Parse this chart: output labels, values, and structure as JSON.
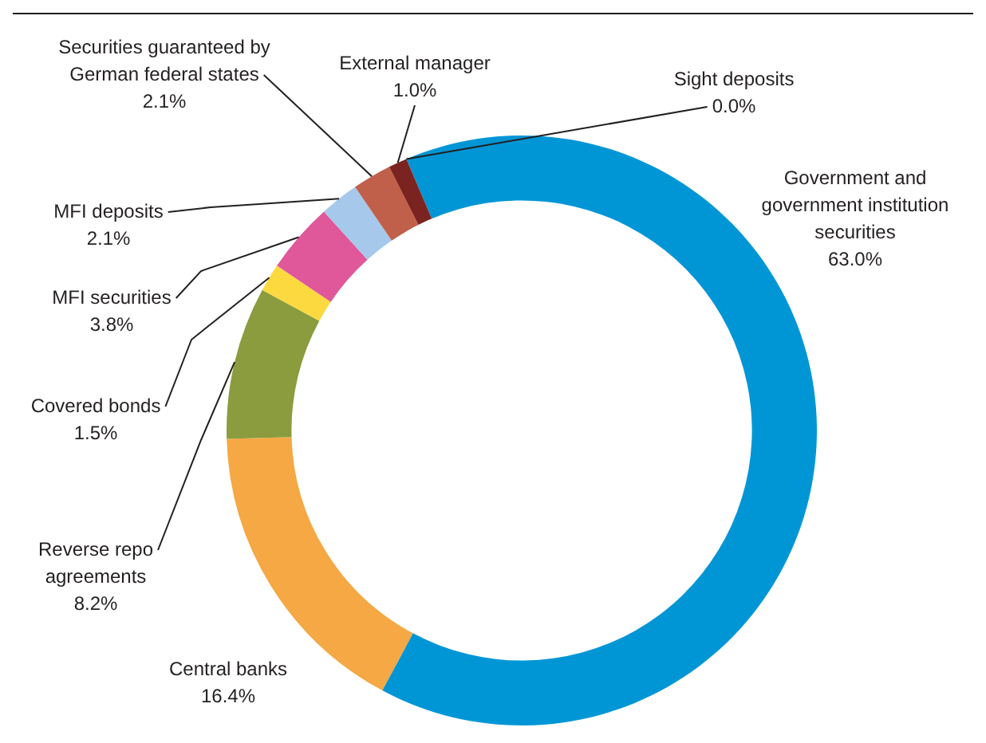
{
  "chart_data": {
    "type": "donut",
    "categories": [
      "Government and government institution securities",
      "Central banks",
      "Reverse repo agreements",
      "Covered bonds",
      "MFI securities",
      "MFI deposits",
      "Securities guaranteed by German federal states",
      "External manager",
      "Sight deposits"
    ],
    "values": [
      63.0,
      16.4,
      8.2,
      1.5,
      3.8,
      2.1,
      2.1,
      1.0,
      0.0
    ],
    "colors": [
      "#0096d6",
      "#f5a843",
      "#8a9c3e",
      "#fcd93f",
      "#e0579a",
      "#a6c8ea",
      "#c0604a",
      "#7b2320",
      "#c00000"
    ],
    "value_labels": [
      "63.0%",
      "16.4%",
      "8.2%",
      "1.5%",
      "3.8%",
      "2.1%",
      "2.1%",
      "1.0%",
      "0.0%"
    ],
    "legend": false
  }
}
